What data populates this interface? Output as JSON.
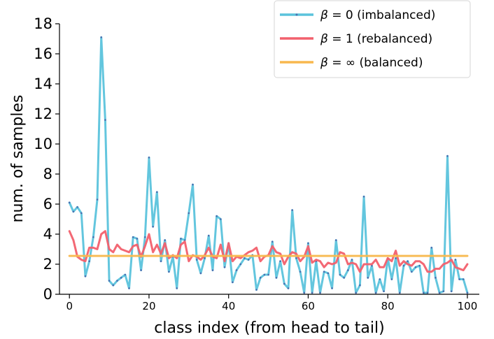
{
  "chart_data": {
    "type": "line",
    "xlabel": "class index (from head to tail)",
    "ylabel": "num. of samples",
    "xlim": [
      -2.5,
      103
    ],
    "ylim": [
      0,
      18
    ],
    "xticks": [
      0,
      20,
      40,
      60,
      80,
      100
    ],
    "yticks": [
      0,
      2,
      4,
      6,
      8,
      10,
      12,
      14,
      16,
      18
    ],
    "grid": false,
    "legend_position": "top-right",
    "series": [
      {
        "name": "β = 0 (imbalanced)",
        "name_parts": [
          "β",
          " = 0 (imbalanced)"
        ],
        "color": "#5bc3dc",
        "width": 3,
        "marker": true,
        "values": [
          6.1,
          5.5,
          5.8,
          5.4,
          1.2,
          2.2,
          3.8,
          6.3,
          17.1,
          11.6,
          0.9,
          0.6,
          0.9,
          1.1,
          1.3,
          0.4,
          3.8,
          3.7,
          1.6,
          3.8,
          9.1,
          4.5,
          6.8,
          2.2,
          3.6,
          1.5,
          2.5,
          0.4,
          3.7,
          3.6,
          5.4,
          7.3,
          2.3,
          1.4,
          2.4,
          3.9,
          1.6,
          5.2,
          5.0,
          1.8,
          3.4,
          0.8,
          1.6,
          2.0,
          2.4,
          2.3,
          2.6,
          0.3,
          1.1,
          1.3,
          1.3,
          3.5,
          1.1,
          2.2,
          0.7,
          0.4,
          5.6,
          2.4,
          1.5,
          0.1,
          3.4,
          0.1,
          2.2,
          0.1,
          1.5,
          1.4,
          0.4,
          3.6,
          1.3,
          1.1,
          1.6,
          2.3,
          0.1,
          0.6,
          6.5,
          1.1,
          1.9,
          0.1,
          1.0,
          0.2,
          2.4,
          1.0,
          2.4,
          0.1,
          1.9,
          2.2,
          1.5,
          1.8,
          1.9,
          0.1,
          0.1,
          3.1,
          1.1,
          0.1,
          0.2,
          9.2,
          0.2,
          2.3,
          1.0,
          1.0,
          0.1
        ]
      },
      {
        "name": "β = 1 (rebalanced)",
        "name_parts": [
          "β",
          " = 1 (rebalanced)"
        ],
        "color": "#f2606d",
        "width": 3,
        "marker": false,
        "values": [
          4.2,
          3.6,
          2.5,
          2.3,
          2.2,
          3.1,
          3.1,
          3.0,
          4.0,
          4.2,
          3.0,
          2.8,
          3.3,
          3.0,
          2.9,
          2.8,
          3.2,
          3.3,
          2.5,
          3.2,
          4.0,
          2.8,
          3.3,
          2.7,
          3.4,
          2.4,
          2.6,
          2.4,
          3.3,
          3.5,
          2.2,
          2.6,
          2.5,
          2.3,
          2.6,
          3.1,
          2.5,
          2.4,
          3.3,
          2.2,
          3.4,
          2.2,
          2.5,
          2.4,
          2.6,
          2.8,
          2.9,
          3.1,
          2.2,
          2.5,
          2.6,
          3.2,
          2.8,
          2.7,
          2.0,
          2.5,
          2.8,
          2.7,
          2.2,
          2.5,
          3.2,
          2.1,
          2.3,
          2.2,
          1.8,
          2.1,
          2.0,
          2.1,
          2.8,
          2.7,
          2.0,
          2.1,
          2.0,
          1.5,
          2.0,
          2.0,
          2.0,
          2.3,
          1.8,
          1.8,
          2.4,
          2.2,
          2.9,
          1.9,
          2.2,
          2.0,
          1.9,
          2.2,
          2.2,
          2.0,
          1.5,
          1.5,
          1.7,
          1.7,
          2.0,
          2.1,
          2.3,
          1.8,
          1.7,
          1.6,
          2.0
        ]
      },
      {
        "name": "β = ∞ (balanced)",
        "name_parts": [
          "β",
          " = ∞ (balanced)"
        ],
        "color": "#f8b84e",
        "width": 3,
        "marker": false,
        "values": [
          2.55,
          2.55,
          2.55,
          2.55,
          2.55,
          2.55,
          2.55,
          2.55,
          2.55,
          2.55,
          2.55,
          2.55,
          2.55,
          2.55,
          2.55,
          2.55,
          2.55,
          2.55,
          2.55,
          2.55,
          2.55,
          2.55,
          2.55,
          2.55,
          2.55,
          2.55,
          2.55,
          2.55,
          2.55,
          2.55,
          2.55,
          2.55,
          2.55,
          2.55,
          2.55,
          2.55,
          2.55,
          2.55,
          2.55,
          2.55,
          2.55,
          2.55,
          2.55,
          2.55,
          2.55,
          2.55,
          2.55,
          2.55,
          2.55,
          2.55,
          2.55,
          2.55,
          2.55,
          2.55,
          2.55,
          2.55,
          2.55,
          2.55,
          2.55,
          2.55,
          2.55,
          2.55,
          2.55,
          2.55,
          2.55,
          2.55,
          2.55,
          2.55,
          2.55,
          2.55,
          2.55,
          2.55,
          2.55,
          2.55,
          2.55,
          2.55,
          2.55,
          2.55,
          2.55,
          2.55,
          2.55,
          2.55,
          2.55,
          2.55,
          2.55,
          2.55,
          2.55,
          2.55,
          2.55,
          2.55,
          2.55,
          2.55,
          2.55,
          2.55,
          2.55,
          2.55,
          2.55,
          2.55,
          2.55,
          2.55,
          2.55
        ]
      }
    ]
  }
}
